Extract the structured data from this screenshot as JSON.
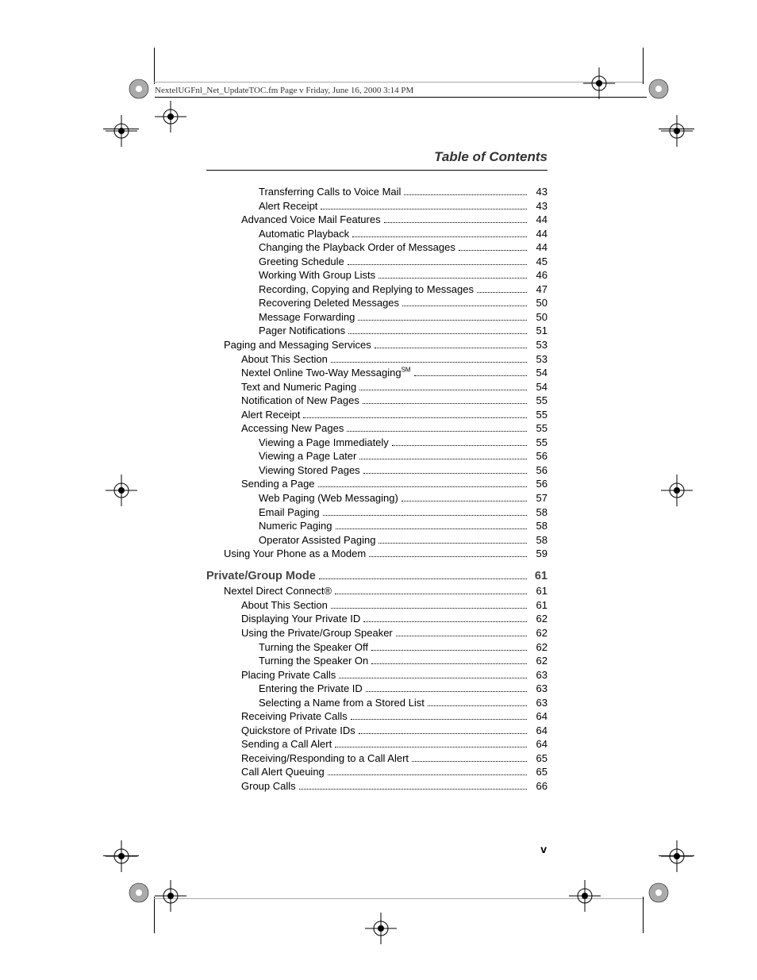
{
  "header": {
    "running_head": "NextelUGFnl_Net_UpdateTOC.fm  Page v  Friday, June 16, 2000  3:14 PM"
  },
  "title": "Table of Contents",
  "page_number": "v",
  "toc": [
    {
      "label": "Transferring Calls to Voice Mail",
      "page": "43",
      "indent": 3
    },
    {
      "label": "Alert Receipt",
      "page": "43",
      "indent": 3
    },
    {
      "label": "Advanced Voice Mail Features",
      "page": "44",
      "indent": 2
    },
    {
      "label": "Automatic Playback",
      "page": "44",
      "indent": 3
    },
    {
      "label": "Changing the Playback Order of Messages",
      "page": "44",
      "indent": 3
    },
    {
      "label": "Greeting Schedule",
      "page": "45",
      "indent": 3
    },
    {
      "label": "Working With Group Lists",
      "page": "46",
      "indent": 3
    },
    {
      "label": "Recording, Copying and Replying to Messages",
      "page": "47",
      "indent": 3
    },
    {
      "label": "Recovering Deleted Messages",
      "page": "50",
      "indent": 3
    },
    {
      "label": "Message Forwarding",
      "page": "50",
      "indent": 3
    },
    {
      "label": "Pager Notifications",
      "page": "51",
      "indent": 3
    },
    {
      "label": "Paging and Messaging Services",
      "page": "53",
      "indent": 1
    },
    {
      "label": "About This Section",
      "page": "53",
      "indent": 2
    },
    {
      "label": "Nextel Online Two-Way Messaging",
      "suffix_super": "SM",
      "page": "54",
      "indent": 2
    },
    {
      "label": "Text and Numeric Paging",
      "page": "54",
      "indent": 2
    },
    {
      "label": "Notification of New Pages",
      "page": "55",
      "indent": 2
    },
    {
      "label": "Alert Receipt",
      "page": "55",
      "indent": 2
    },
    {
      "label": "Accessing New Pages",
      "page": "55",
      "indent": 2
    },
    {
      "label": "Viewing a Page Immediately",
      "page": "55",
      "indent": 3
    },
    {
      "label": "Viewing a Page Later",
      "page": "56",
      "indent": 3
    },
    {
      "label": "Viewing Stored Pages",
      "page": "56",
      "indent": 3
    },
    {
      "label": "Sending a Page",
      "page": "56",
      "indent": 2
    },
    {
      "label": "Web Paging (Web Messaging)",
      "page": "57",
      "indent": 3
    },
    {
      "label": "Email Paging",
      "page": "58",
      "indent": 3
    },
    {
      "label": "Numeric Paging",
      "page": "58",
      "indent": 3
    },
    {
      "label": "Operator Assisted Paging",
      "page": "58",
      "indent": 3
    },
    {
      "label": "Using Your Phone as a Modem",
      "page": "59",
      "indent": 1
    },
    {
      "label": "Private/Group Mode",
      "page": "61",
      "indent": 0,
      "heading": true
    },
    {
      "label": "Nextel Direct Connect®",
      "page": "61",
      "indent": 1
    },
    {
      "label": "About This Section",
      "page": "61",
      "indent": 2
    },
    {
      "label": "Displaying Your Private ID",
      "page": "62",
      "indent": 2
    },
    {
      "label": "Using the Private/Group Speaker",
      "page": "62",
      "indent": 2
    },
    {
      "label": "Turning the Speaker Off",
      "page": "62",
      "indent": 3
    },
    {
      "label": "Turning the Speaker On",
      "page": "62",
      "indent": 3
    },
    {
      "label": "Placing Private Calls",
      "page": "63",
      "indent": 2
    },
    {
      "label": "Entering the Private ID",
      "page": "63",
      "indent": 3
    },
    {
      "label": "Selecting a Name from a Stored List",
      "page": "63",
      "indent": 3
    },
    {
      "label": "Receiving Private Calls",
      "page": "64",
      "indent": 2
    },
    {
      "label": "Quickstore of Private IDs",
      "page": "64",
      "indent": 2
    },
    {
      "label": "Sending a Call Alert",
      "page": "64",
      "indent": 2
    },
    {
      "label": "Receiving/Responding to a Call Alert",
      "page": "65",
      "indent": 2
    },
    {
      "label": "Call Alert Queuing",
      "page": "65",
      "indent": 2
    },
    {
      "label": "Group Calls",
      "page": "66",
      "indent": 2
    }
  ],
  "marks": {
    "color": "#000000"
  }
}
